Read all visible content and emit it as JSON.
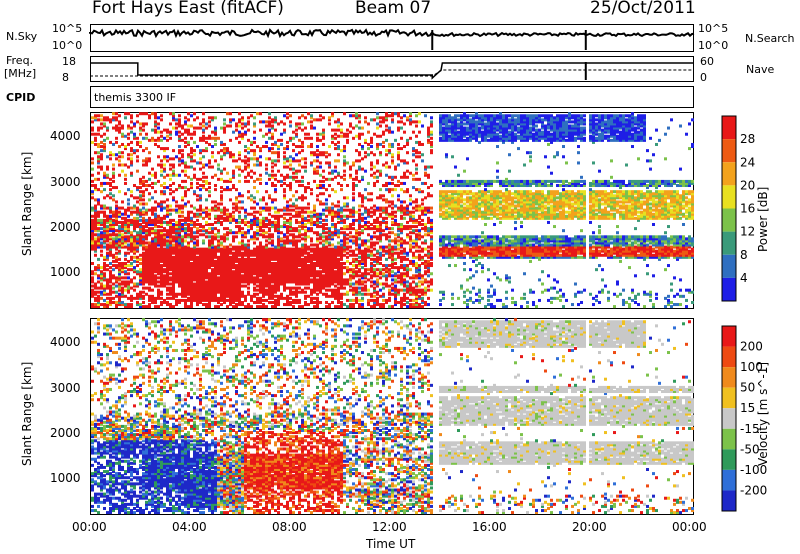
{
  "header": {
    "station": "Fort Hays East (fitACF)",
    "beam": "Beam 07",
    "date": "25/Oct/2011"
  },
  "noise_panel": {
    "left_label": "N.Sky",
    "left_ticks": [
      "10^5",
      "10^0"
    ],
    "right_label": "N.Search",
    "right_ticks": [
      "10^5",
      "10^0"
    ]
  },
  "freq_panel": {
    "left_label_1": "Freq.",
    "left_label_2": "[MHz]",
    "left_ticks": [
      "18",
      "8"
    ],
    "right_label": "Nave",
    "right_ticks": [
      "60",
      "0"
    ],
    "cpid_label": "CPID",
    "cpid_value": "themis 3300 IF"
  },
  "chart_data": [
    {
      "type": "heatmap",
      "quantity": "Power",
      "ylabel": "Slant Range [km]",
      "yticks": [
        "4000",
        "3000",
        "2000",
        "1000"
      ],
      "ylim": [
        180,
        4500
      ],
      "colorbar_label": "Power [dB]",
      "colorbar_ticks": [
        "28",
        "24",
        "20",
        "16",
        "12",
        "8",
        "4"
      ],
      "colors": [
        "#1e1ee6",
        "#2f6fc0",
        "#3a9a7a",
        "#7cc24a",
        "#e8e020",
        "#f3a21c",
        "#ee5a12",
        "#e81818"
      ]
    },
    {
      "type": "heatmap",
      "quantity": "Velocity",
      "ylabel": "Slant Range [km]",
      "yticks": [
        "4000",
        "3000",
        "2000",
        "1000"
      ],
      "ylim": [
        180,
        4500
      ],
      "xlabel": "Time UT",
      "xticks": [
        "00:00",
        "04:00",
        "08:00",
        "12:00",
        "16:00",
        "20:00",
        "00:00"
      ],
      "colorbar_label": "Velocity [m s^-1]",
      "colorbar_ticks": [
        "200",
        "100",
        "50",
        "15",
        "-15",
        "-50",
        "-100",
        "-200"
      ],
      "colors": [
        "#1e28c8",
        "#2f6fd8",
        "#2f9a5a",
        "#7cc24a",
        "#c8c8c8",
        "#f0c020",
        "#f08a1c",
        "#ee4a12",
        "#e81818"
      ]
    }
  ]
}
